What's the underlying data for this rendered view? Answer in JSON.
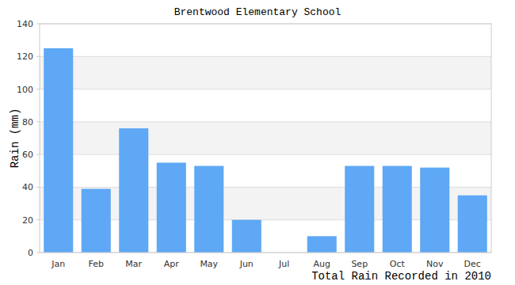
{
  "chart_data": {
    "type": "bar",
    "title": "Brentwood Elementary School",
    "x_label": "Total Rain Recorded in 2010",
    "y_label": "Rain (mm)",
    "categories": [
      "Jan",
      "Feb",
      "Mar",
      "Apr",
      "May",
      "Jun",
      "Jul",
      "Aug",
      "Sep",
      "Oct",
      "Nov",
      "Dec"
    ],
    "values": [
      125,
      39,
      76,
      55,
      53,
      20,
      0,
      10,
      53,
      53,
      52,
      35
    ],
    "color": "#5ea8f5",
    "ylim": [
      0,
      140
    ],
    "yticks": [
      0,
      20,
      40,
      60,
      80,
      100,
      120,
      140
    ],
    "grid": true
  }
}
